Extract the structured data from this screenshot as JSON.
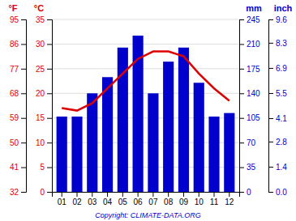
{
  "chart_data": {
    "type": "bar",
    "categories": [
      "01",
      "02",
      "03",
      "04",
      "05",
      "06",
      "07",
      "08",
      "09",
      "10",
      "11",
      "12"
    ],
    "series": [
      {
        "type": "bar",
        "axis": "y2",
        "color": "#0000cc",
        "values": [
          107,
          107,
          140,
          163,
          205,
          222,
          140,
          185,
          205,
          155,
          107,
          112
        ]
      },
      {
        "type": "line",
        "color": "#dd0000",
        "values": [
          17.0,
          16.5,
          18.0,
          21.0,
          24.0,
          27.0,
          28.5,
          28.5,
          27.5,
          24.0,
          21.0,
          18.5
        ]
      }
    ],
    "ylabel": "°C",
    "ylim": [
      0,
      35
    ],
    "yticks": [
      0,
      5,
      10,
      15,
      20,
      25,
      30,
      35
    ],
    "y2label": "mm",
    "y2lim": [
      0,
      245
    ],
    "y2ticks": [
      0,
      35,
      70,
      105,
      140,
      175,
      210,
      245
    ],
    "y3label": "°F",
    "y3lim": [
      32,
      95
    ],
    "y3ticks": [
      32,
      41,
      50,
      59,
      68,
      77,
      86,
      95
    ],
    "y4label": "inch",
    "y4lim": [
      0,
      9.6
    ],
    "y4ticks": [
      {
        "value": 0,
        "label": "0.0"
      },
      1.4,
      2.8,
      4.1,
      5.5,
      6.9,
      8.3,
      9.6
    ],
    "grid": true,
    "annotations": [
      {
        "text": "Copyright: CLIMATE-DATA.ORG",
        "color": "#0000cc"
      }
    ]
  }
}
